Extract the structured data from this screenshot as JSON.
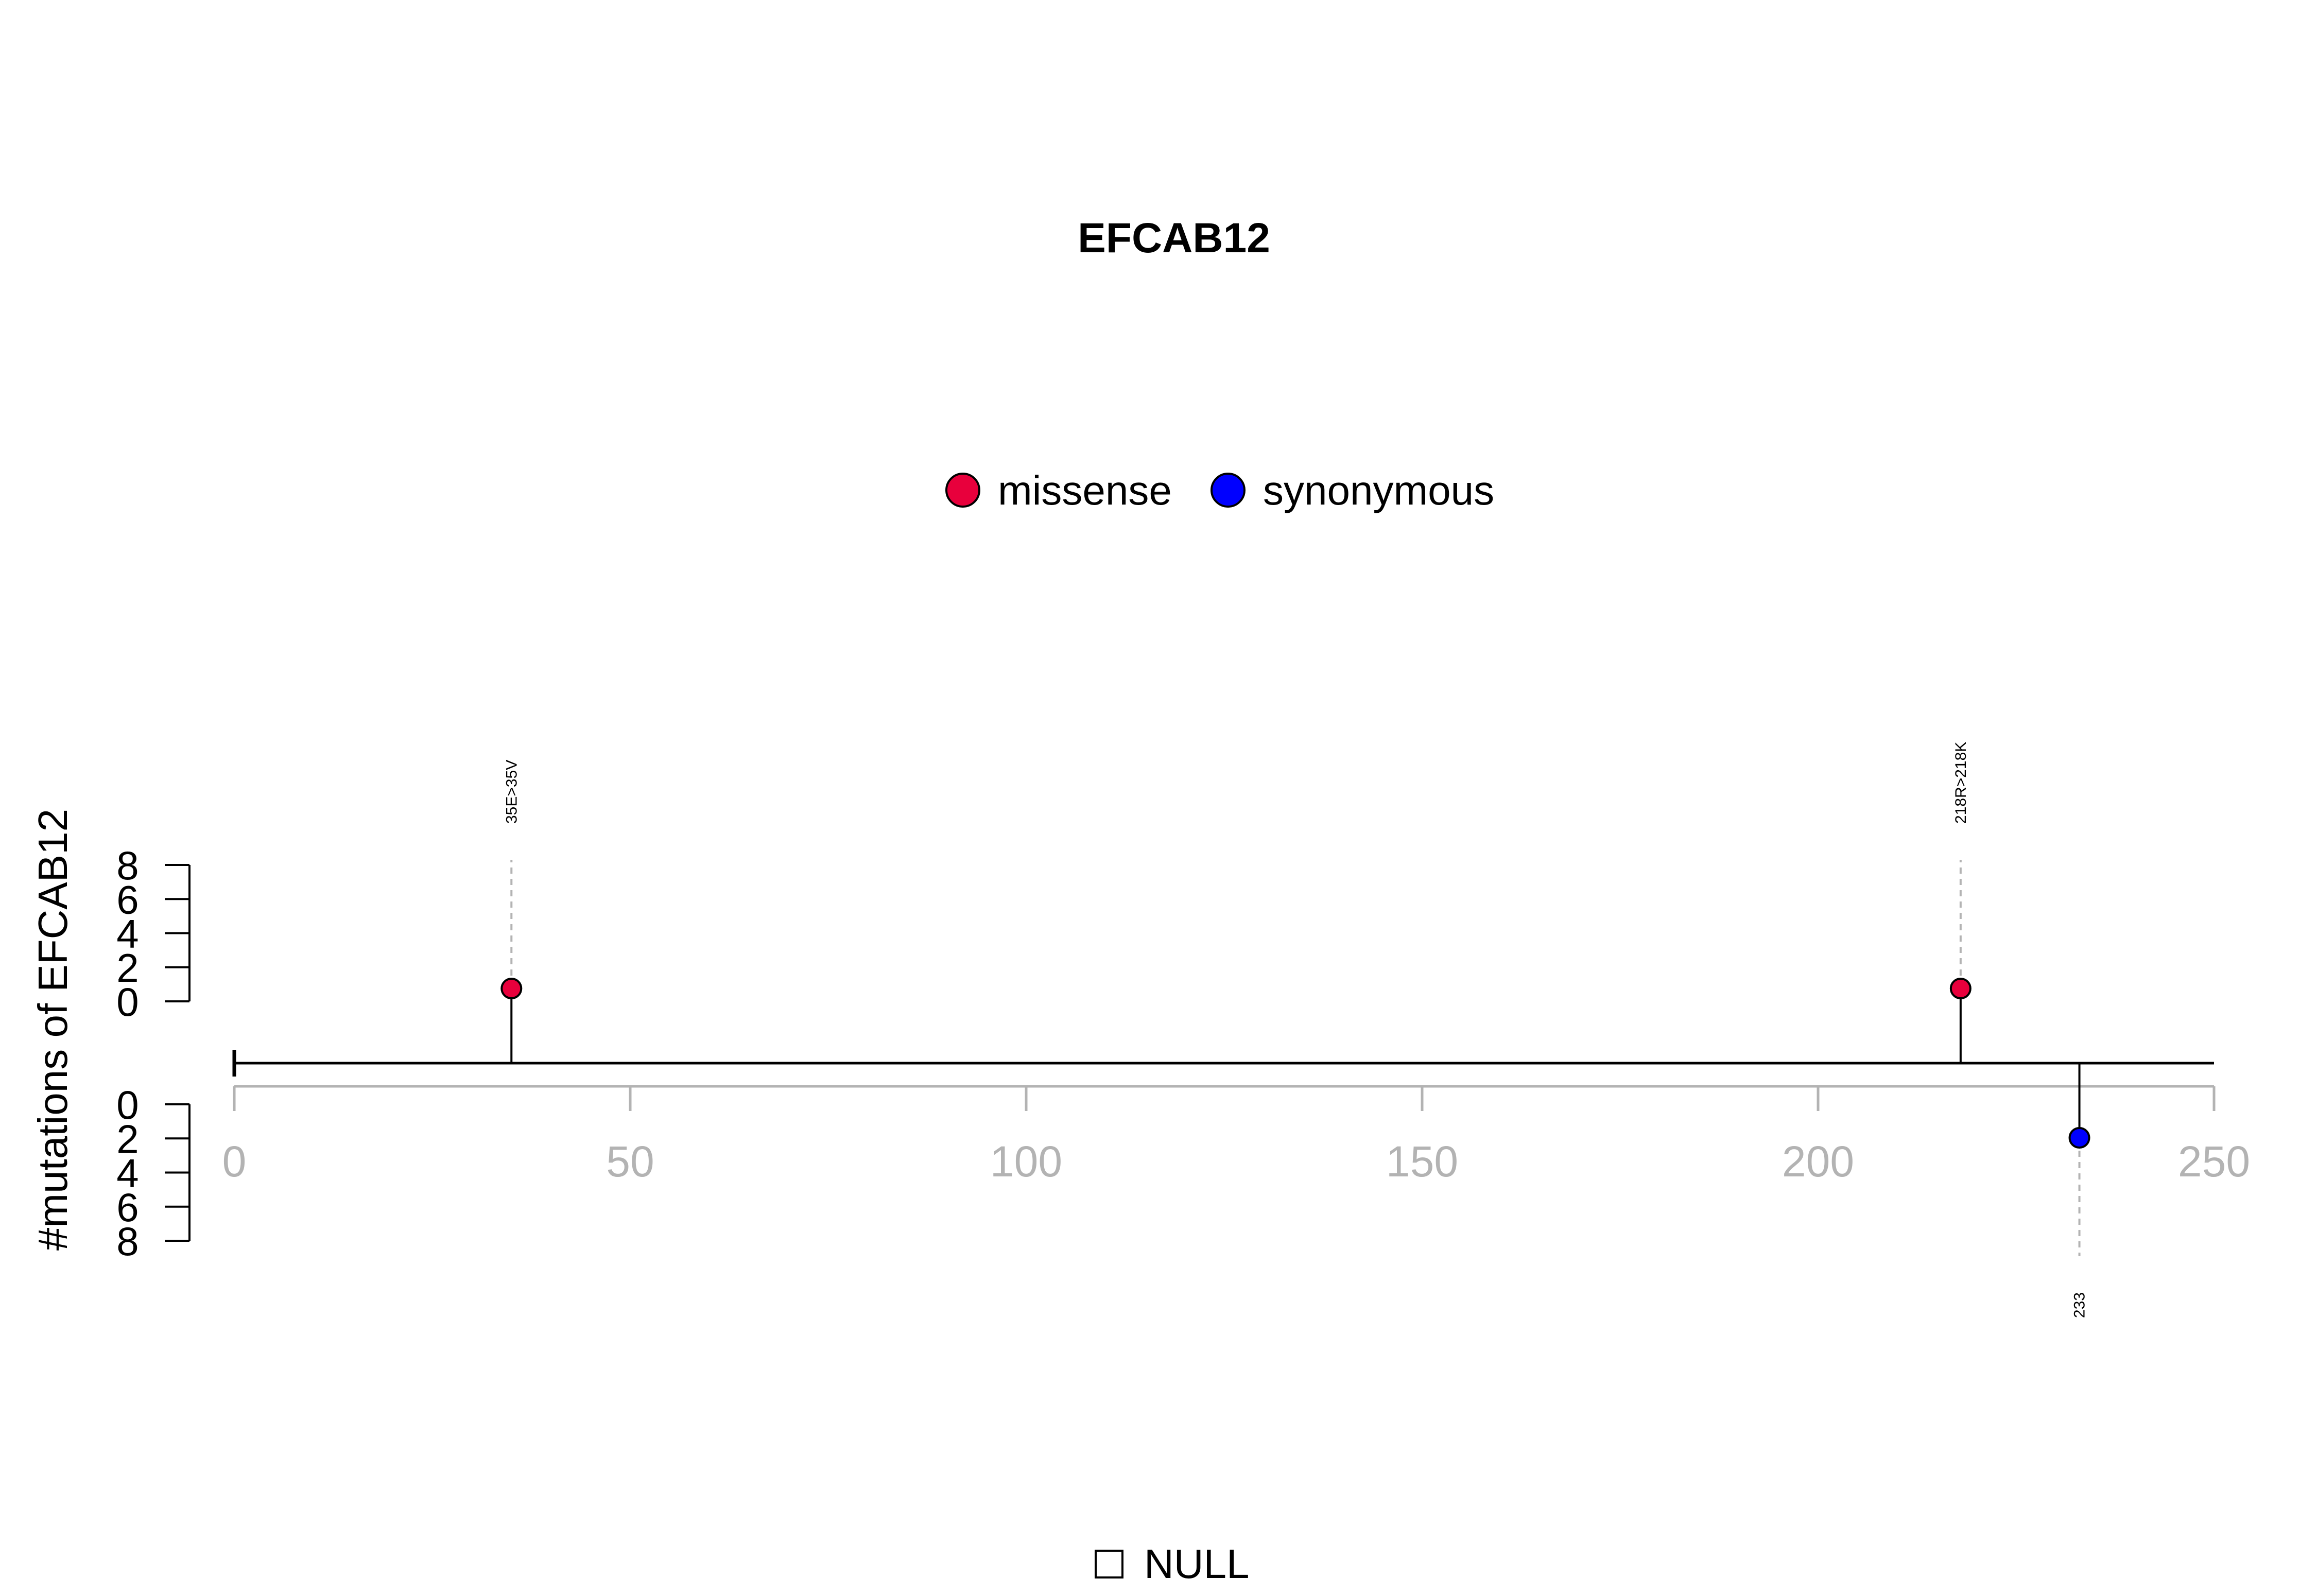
{
  "chart_data": {
    "type": "lollipop",
    "title": "EFCAB12",
    "ylabel": "#mutations of EFCAB12",
    "xlim": [
      0,
      250
    ],
    "x_ticks": [
      0,
      50,
      100,
      150,
      200,
      250
    ],
    "upper_ylim": [
      0,
      8
    ],
    "upper_y_ticks": [
      0,
      2,
      4,
      6,
      8
    ],
    "lower_ylim": [
      0,
      8
    ],
    "lower_y_ticks": [
      0,
      2,
      4,
      6,
      8
    ],
    "legend_top": {
      "placement": "top-center",
      "entries": [
        {
          "label": "missense",
          "color": "#e8003c"
        },
        {
          "label": "synonymous",
          "color": "#0000ff"
        }
      ]
    },
    "legend_bottom": {
      "placement": "bottom-center",
      "entries": [
        {
          "label": "NULL",
          "color": "#ffffff"
        }
      ]
    },
    "mutations": [
      {
        "position": 35,
        "count": 1,
        "label": "35E>35V",
        "type": "missense",
        "side": "top"
      },
      {
        "position": 218,
        "count": 1,
        "label": "218R>218K",
        "type": "missense",
        "side": "top"
      },
      {
        "position": 233,
        "count": 1,
        "label": "233",
        "type": "synonymous",
        "side": "bottom"
      }
    ],
    "grid": false
  }
}
